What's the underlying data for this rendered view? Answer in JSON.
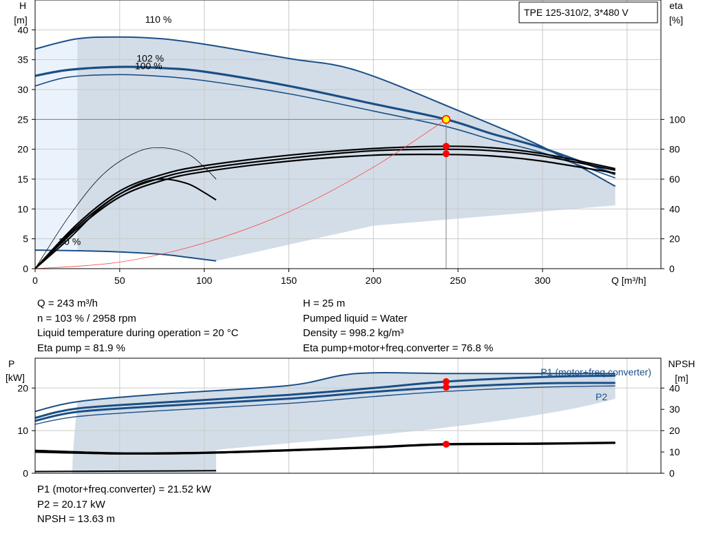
{
  "pump_model": "TPE 125-310/2, 3*480 V",
  "operating_point": {
    "q_label": "Q = 243 m³/h",
    "h_label": "H = 25 m",
    "n_label": "n = 103 % / 2958 rpm",
    "liquid_label": "Pumped liquid = Water",
    "temp_label": "Liquid temperature during operation = 20 °C",
    "density_label": "Density = 998.2 kg/m³",
    "eta_pump_label": "Eta pump = 81.9 %",
    "eta_total_label": "Eta pump+motor+freq.converter = 76.8 %",
    "p1_label": "P1 (motor+freq.converter) = 21.52 kW",
    "p2_label": "P2 = 20.17 kW",
    "npsh_label": "NPSH = 13.63 m"
  },
  "colors": {
    "curve_blue": "#1a4f86",
    "area_fill": "#d3dde8",
    "marker_red": "#ff0000",
    "marker_yellow": "#ffff00",
    "system_curve": "#ff4040"
  },
  "chart_data": [
    {
      "type": "line",
      "id": "qh",
      "xlabel": "Q [m³/h]",
      "ylabel_left": [
        "H",
        "[m]"
      ],
      "ylabel_right": [
        "eta",
        "[%]"
      ],
      "xlim": [
        0,
        370
      ],
      "ylim": [
        0,
        45
      ],
      "ylim_right": [
        0,
        180
      ],
      "x_ticks": [
        0,
        50,
        100,
        150,
        200,
        250,
        300
      ],
      "y_ticks": [
        0,
        5,
        10,
        15,
        20,
        25,
        30,
        35,
        40
      ],
      "y_right_ticks": [
        0,
        20,
        40,
        60,
        80,
        100
      ],
      "grid": true,
      "curve_labels": [
        "110 %",
        "102 %",
        "100 %",
        "30 %"
      ],
      "operating_point": {
        "q": 243,
        "h": 25
      },
      "series": [
        {
          "kind": "head",
          "label": "110 %",
          "points": [
            [
              0,
              36.8
            ],
            [
              25,
              38.5
            ],
            [
              50,
              38.8
            ],
            [
              75,
              38.5
            ],
            [
              100,
              37.6
            ],
            [
              150,
              35.2
            ],
            [
              190,
              33.2
            ],
            [
              250,
              26.5
            ],
            [
              300,
              20.4
            ],
            [
              343,
              13.8
            ]
          ]
        },
        {
          "kind": "head",
          "label": "102 %",
          "points": [
            [
              0,
              32.3
            ],
            [
              20,
              33.3
            ],
            [
              50,
              33.8
            ],
            [
              75,
              33.6
            ],
            [
              100,
              33.0
            ],
            [
              150,
              30.6
            ],
            [
              200,
              27.6
            ],
            [
              243,
              25.0
            ],
            [
              270,
              22.6
            ],
            [
              300,
              20.2
            ],
            [
              343,
              15.8
            ]
          ]
        },
        {
          "kind": "head",
          "label": "100 %",
          "points": [
            [
              0,
              30.6
            ],
            [
              20,
              32.1
            ],
            [
              50,
              32.5
            ],
            [
              75,
              32.2
            ],
            [
              100,
              31.5
            ],
            [
              150,
              29.3
            ],
            [
              200,
              26.4
            ],
            [
              243,
              23.8
            ],
            [
              270,
              21.6
            ],
            [
              300,
              19.4
            ],
            [
              343,
              15.2
            ]
          ]
        },
        {
          "kind": "head",
          "label": "30 %",
          "points": [
            [
              0,
              3.1
            ],
            [
              25,
              3.0
            ],
            [
              50,
              2.8
            ],
            [
              75,
              2.4
            ],
            [
              90,
              1.9
            ],
            [
              107,
              1.3
            ]
          ]
        },
        {
          "kind": "efficiency",
          "points": [
            [
              0,
              0
            ],
            [
              25,
              27
            ],
            [
              50,
              48
            ],
            [
              75,
              59
            ],
            [
              100,
              65
            ],
            [
              150,
              72
            ],
            [
              200,
              76
            ],
            [
              243,
              76.5
            ],
            [
              270,
              75.5
            ],
            [
              300,
              72
            ],
            [
              343,
              64
            ]
          ]
        },
        {
          "kind": "efficiency",
          "points": [
            [
              0,
              0
            ],
            [
              25,
              28.5
            ],
            [
              50,
              50
            ],
            [
              75,
              61
            ],
            [
              100,
              67
            ],
            [
              150,
              74
            ],
            [
              200,
              79
            ],
            [
              243,
              80
            ],
            [
              270,
              79
            ],
            [
              300,
              75.5
            ],
            [
              343,
              66
            ]
          ]
        },
        {
          "kind": "efficiency",
          "points": [
            [
              0,
              0
            ],
            [
              25,
              30
            ],
            [
              50,
              52
            ],
            [
              75,
              63
            ],
            [
              100,
              69
            ],
            [
              150,
              76
            ],
            [
              200,
              80.5
            ],
            [
              243,
              82
            ],
            [
              270,
              81
            ],
            [
              300,
              77
            ],
            [
              343,
              67
            ]
          ]
        },
        {
          "kind": "efficiency",
          "points": [
            [
              0,
              0
            ],
            [
              20,
              20
            ],
            [
              40,
              42
            ],
            [
              60,
              56
            ],
            [
              75,
              60
            ],
            [
              90,
              57
            ],
            [
              100,
              51
            ],
            [
              107,
              46
            ]
          ]
        },
        {
          "kind": "efficiency",
          "points": [
            [
              0,
              0
            ],
            [
              20,
              35
            ],
            [
              40,
              63
            ],
            [
              60,
              78
            ],
            [
              75,
              81
            ],
            [
              90,
              77
            ],
            [
              100,
              68
            ],
            [
              107,
              60
            ]
          ]
        },
        {
          "kind": "system",
          "points": [
            [
              0,
              0
            ],
            [
              50,
              1.1
            ],
            [
              100,
              4.3
            ],
            [
              150,
              9.5
            ],
            [
              200,
              17.0
            ],
            [
              243,
              25.0
            ]
          ]
        }
      ],
      "markers_eta": [
        82,
        77
      ]
    },
    {
      "type": "line",
      "id": "power",
      "xlim": [
        0,
        370
      ],
      "ylabel_left": [
        "P",
        "[kW]"
      ],
      "ylabel_right": [
        "NPSH",
        "[m]"
      ],
      "ylim": [
        0,
        27
      ],
      "ylim_right": [
        0,
        54
      ],
      "y_ticks": [
        0,
        10,
        20
      ],
      "y_right_ticks": [
        0,
        10,
        20,
        30,
        40
      ],
      "grid": true,
      "series_labels": [
        "P1 (motor+freq.converter)",
        "P2"
      ],
      "series": [
        {
          "kind": "power",
          "points": [
            [
              0,
              14.5
            ],
            [
              25,
              16.8
            ],
            [
              75,
              18.6
            ],
            [
              150,
              20.6
            ],
            [
              190,
              23.4
            ],
            [
              250,
              23.4
            ],
            [
              343,
              23.4
            ]
          ]
        },
        {
          "kind": "power",
          "points": [
            [
              0,
              13.0
            ],
            [
              25,
              15.2
            ],
            [
              75,
              16.6
            ],
            [
              150,
              18.4
            ],
            [
              200,
              20.0
            ],
            [
              243,
              21.5
            ],
            [
              300,
              22.6
            ],
            [
              343,
              22.9
            ]
          ]
        },
        {
          "kind": "power",
          "points": [
            [
              0,
              12.3
            ],
            [
              25,
              14.4
            ],
            [
              75,
              15.8
            ],
            [
              150,
              17.5
            ],
            [
              200,
              19.1
            ],
            [
              243,
              20.2
            ],
            [
              300,
              21.1
            ],
            [
              343,
              21.2
            ]
          ]
        },
        {
          "kind": "power",
          "points": [
            [
              0,
              11.5
            ],
            [
              25,
              13.3
            ],
            [
              75,
              14.7
            ],
            [
              150,
              16.4
            ],
            [
              200,
              18.0
            ],
            [
              243,
              19.2
            ],
            [
              300,
              20.2
            ],
            [
              343,
              20.5
            ]
          ]
        },
        {
          "kind": "power",
          "points": [
            [
              0,
              0.4
            ],
            [
              107,
              0.6
            ]
          ]
        },
        {
          "kind": "npsh",
          "points": [
            [
              0,
              10.5
            ],
            [
              50,
              9.3
            ],
            [
              100,
              9.6
            ],
            [
              150,
              10.8
            ],
            [
              200,
              12.2
            ],
            [
              243,
              13.6
            ],
            [
              300,
              13.9
            ],
            [
              343,
              14.3
            ]
          ]
        },
        {
          "kind": "npsh",
          "points": [
            [
              0,
              9.8
            ],
            [
              50,
              9.0
            ],
            [
              100,
              9.3
            ],
            [
              150,
              10.5
            ],
            [
              200,
              12.0
            ],
            [
              243,
              13.4
            ],
            [
              300,
              13.8
            ],
            [
              343,
              14.1
            ]
          ]
        }
      ],
      "markers_p": [
        21.5,
        20.2
      ],
      "marker_npsh": 13.63
    }
  ]
}
